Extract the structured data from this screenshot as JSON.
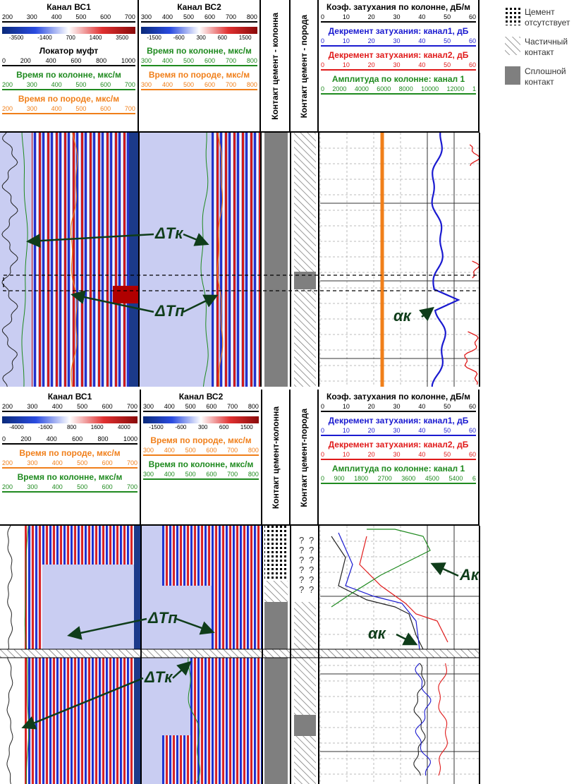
{
  "legend": [
    "Цемент отсутствует",
    "Частичный контакт",
    "Сплошной контакт"
  ],
  "question_mark": "?",
  "panels": [
    {
      "tracks": [
        {
          "rows": [
            {
              "text": "Канал ВС1",
              "color": "#000000"
            },
            {
              "scale": [
                "200",
                "300",
                "400",
                "500",
                "600",
                "700"
              ],
              "color": "#000000"
            },
            {
              "colorbar": [
                "-3500",
                "-1400",
                "700",
                "1400",
                "3500"
              ]
            },
            {
              "text": "Локатор муфт",
              "color": "#000000"
            },
            {
              "scale": [
                "0",
                "200",
                "400",
                "600",
                "800",
                "1000"
              ],
              "color": "#000000"
            },
            {
              "text": "Время по колонне, мкс/м",
              "color": "#1f8a1f"
            },
            {
              "scale": [
                "200",
                "300",
                "400",
                "500",
                "600",
                "700"
              ],
              "color": "#1f8a1f"
            },
            {
              "text": "Время по породе, мкс/м",
              "color": "#f07f1a"
            },
            {
              "scale": [
                "200",
                "300",
                "400",
                "500",
                "600",
                "700"
              ],
              "color": "#f07f1a"
            }
          ]
        },
        {
          "rows": [
            {
              "text": "Канал ВС2",
              "color": "#000000"
            },
            {
              "scale": [
                "300",
                "400",
                "500",
                "600",
                "700",
                "800"
              ],
              "color": "#000000"
            },
            {
              "colorbar": [
                "-1500",
                "-600",
                "300",
                "600",
                "1500"
              ]
            },
            {
              "text": "Время по колонне, мкс/м",
              "color": "#1f8a1f"
            },
            {
              "scale": [
                "300",
                "400",
                "500",
                "600",
                "700",
                "800"
              ],
              "color": "#1f8a1f"
            },
            {
              "text": "Время по породе, мкс/м",
              "color": "#f07f1a"
            },
            {
              "scale": [
                "300",
                "400",
                "500",
                "600",
                "700",
                "800"
              ],
              "color": "#f07f1a"
            }
          ]
        },
        {
          "rotated": "Контакт цемент - колонна"
        },
        {
          "rotated": "Контакт цемент - порода"
        },
        {
          "rows": [
            {
              "text": "Коэф. затухания по колонне, дБ/м",
              "color": "#000000"
            },
            {
              "scale": [
                "0",
                "10",
                "20",
                "30",
                "40",
                "50",
                "60"
              ],
              "color": "#000000"
            },
            {
              "text": "Декремент затухания: канал1, дБ",
              "color": "#1a1ad0"
            },
            {
              "scale": [
                "0",
                "10",
                "20",
                "30",
                "40",
                "50",
                "60"
              ],
              "color": "#1a1ad0"
            },
            {
              "text": "Декремент затухания: канал2, дБ",
              "color": "#e01a1a"
            },
            {
              "scale": [
                "0",
                "10",
                "20",
                "30",
                "40",
                "50",
                "60"
              ],
              "color": "#e01a1a"
            },
            {
              "text": "Амплитуда по колонне: канал 1",
              "color": "#1f8a1f"
            },
            {
              "scale": [
                "0",
                "2000",
                "4000",
                "6000",
                "8000",
                "10000",
                "12000",
                "1"
              ],
              "color": "#1f8a1f"
            }
          ]
        }
      ],
      "annotations": [
        "ΔTк",
        "ΔTп",
        "αк"
      ]
    },
    {
      "tracks": [
        {
          "rows": [
            {
              "text": "Канал ВС1",
              "color": "#000000"
            },
            {
              "scale": [
                "200",
                "300",
                "400",
                "500",
                "600",
                "700"
              ],
              "color": "#000000"
            },
            {
              "colorbar": [
                "-4000",
                "-1600",
                "800",
                "1600",
                "4000"
              ]
            },
            {
              "scale": [
                "0",
                "200",
                "400",
                "600",
                "800",
                "1000"
              ],
              "color": "#000000"
            },
            {
              "text": "Время по породе, мкс/м",
              "color": "#f07f1a"
            },
            {
              "scale": [
                "200",
                "300",
                "400",
                "500",
                "600",
                "700"
              ],
              "color": "#f07f1a"
            },
            {
              "text": "Время по колонне, мкс/м",
              "color": "#1f8a1f"
            },
            {
              "scale": [
                "200",
                "300",
                "400",
                "500",
                "600",
                "700"
              ],
              "color": "#1f8a1f"
            }
          ]
        },
        {
          "rows": [
            {
              "text": "Канал ВС2",
              "color": "#000000"
            },
            {
              "scale": [
                "300",
                "400",
                "500",
                "600",
                "700",
                "800"
              ],
              "color": "#000000"
            },
            {
              "colorbar": [
                "-1500",
                "-600",
                "300",
                "600",
                "1500"
              ]
            },
            {
              "text": "Время по породе, мкс/м",
              "color": "#f07f1a"
            },
            {
              "scale": [
                "300",
                "400",
                "500",
                "600",
                "700",
                "800"
              ],
              "color": "#f07f1a"
            },
            {
              "text": "Время по колонне, мкс/м",
              "color": "#1f8a1f"
            },
            {
              "scale": [
                "300",
                "400",
                "500",
                "600",
                "700",
                "800"
              ],
              "color": "#1f8a1f"
            }
          ]
        },
        {
          "rotated": "Контакт цемент-колонна"
        },
        {
          "rotated": "Контакт цемент-порода"
        },
        {
          "rows": [
            {
              "text": "Коэф. затухания по колонне, дБ/м",
              "color": "#000000"
            },
            {
              "scale": [
                "0",
                "10",
                "20",
                "30",
                "40",
                "50",
                "60"
              ],
              "color": "#000000"
            },
            {
              "text": "Декремент затухания: канал1, дБ",
              "color": "#1a1ad0"
            },
            {
              "scale": [
                "0",
                "10",
                "20",
                "30",
                "40",
                "50",
                "60"
              ],
              "color": "#1a1ad0"
            },
            {
              "text": "Декремент затухания: канал2, дБ",
              "color": "#e01a1a"
            },
            {
              "scale": [
                "0",
                "10",
                "20",
                "30",
                "40",
                "50",
                "60"
              ],
              "color": "#e01a1a"
            },
            {
              "text": "Амплитуда по колонне: канал 1",
              "color": "#1f8a1f"
            },
            {
              "scale": [
                "0",
                "900",
                "1800",
                "2700",
                "3600",
                "4500",
                "5400",
                "6"
              ],
              "color": "#1f8a1f"
            }
          ]
        }
      ],
      "annotations": [
        "ΔTп",
        "ΔTк",
        "Aк",
        "αк"
      ]
    }
  ]
}
